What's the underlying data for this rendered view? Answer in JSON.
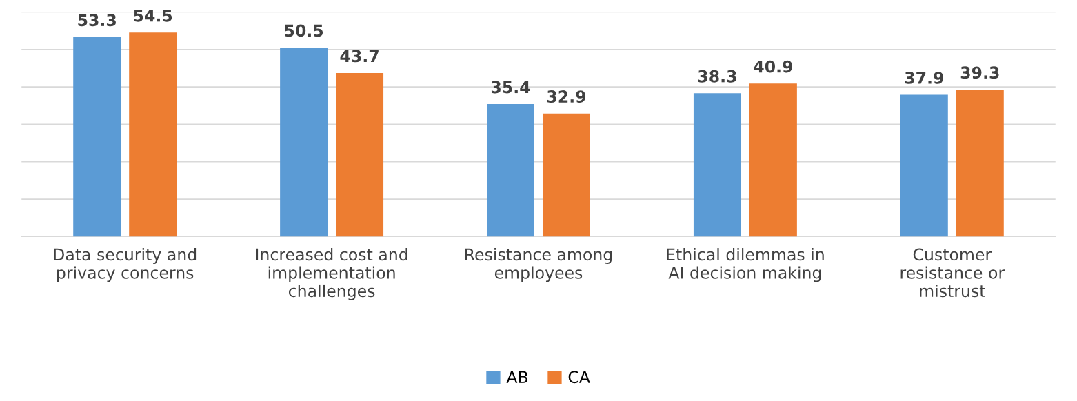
{
  "chart_data": {
    "type": "bar",
    "categories": [
      "Data security and\nprivacy concerns",
      "Increased cost and\nimplementation\nchallenges",
      "Resistance among\nemployees",
      "Ethical dilemmas in\nAI decision making",
      "Customer\nresistance or\nmistrust"
    ],
    "series": [
      {
        "name": "AB",
        "color": "#5b9bd5",
        "values": [
          53.3,
          50.5,
          35.4,
          38.3,
          37.9
        ]
      },
      {
        "name": "CA",
        "color": "#ed7d31",
        "values": [
          54.5,
          43.7,
          32.9,
          40.9,
          39.3
        ]
      }
    ],
    "ylim": [
      0,
      60
    ],
    "yticks": [
      {
        "value": 0,
        "label": null
      },
      {
        "value": 10,
        "label": null
      },
      {
        "value": 20,
        "label": null
      },
      {
        "value": 30,
        "label": null
      },
      {
        "value": 40,
        "label": null
      },
      {
        "value": 50,
        "label": null
      },
      {
        "value": 60,
        "label": null
      }
    ],
    "tick_labels": "x",
    "grid": "y",
    "data_labels": true,
    "legend": "bottom"
  }
}
